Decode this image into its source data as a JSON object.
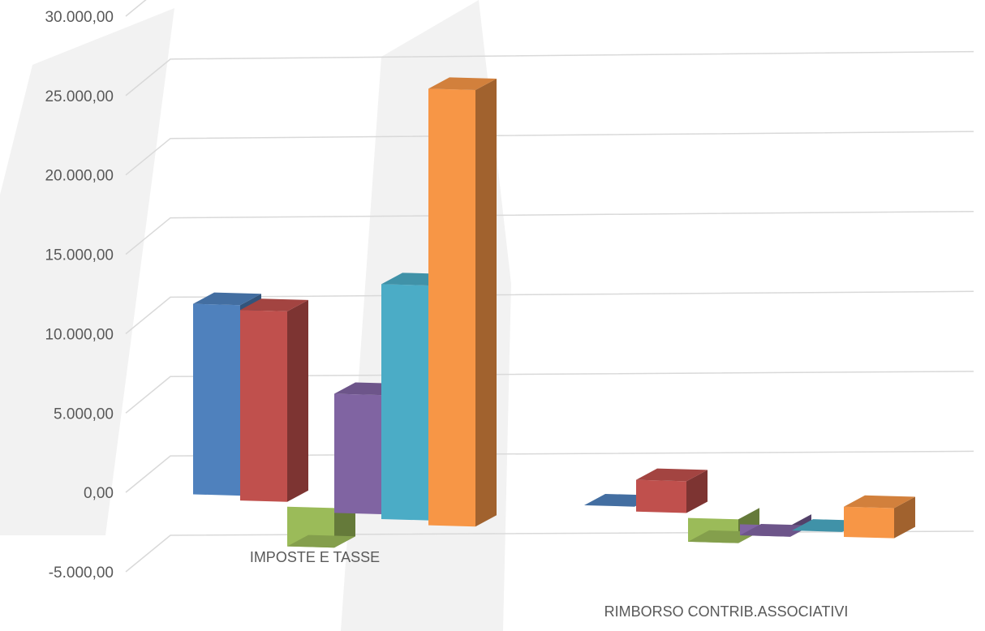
{
  "chart_data": {
    "type": "bar",
    "title": "",
    "xlabel": "",
    "ylabel": "",
    "categories": [
      "IMPOSTE E TASSE",
      "RIMBORSO CONTRIB.ASSOCIATIVI"
    ],
    "ylim": [
      -5000,
      30000
    ],
    "y_ticks": [
      -5000,
      0,
      5000,
      10000,
      15000,
      20000,
      25000,
      30000
    ],
    "y_tick_labels": [
      "-5.000,00",
      "0,00",
      "5.000,00",
      "10.000,00",
      "15.000,00",
      "20.000,00",
      "25.000,00",
      "30.000,00"
    ],
    "grid": true,
    "legend": "none",
    "style": "3d-clustered-column",
    "series": [
      {
        "color": "#4f81bd",
        "values": [
          12000,
          0
        ]
      },
      {
        "color": "#c0504d",
        "values": [
          12000,
          2000
        ]
      },
      {
        "color": "#9bbb59",
        "values": [
          -2500,
          -1500
        ]
      },
      {
        "color": "#8064a2",
        "values": [
          7500,
          -700
        ]
      },
      {
        "color": "#4bacc6",
        "values": [
          14800,
          0
        ]
      },
      {
        "color": "#f79646",
        "values": [
          27500,
          1900
        ]
      }
    ]
  }
}
